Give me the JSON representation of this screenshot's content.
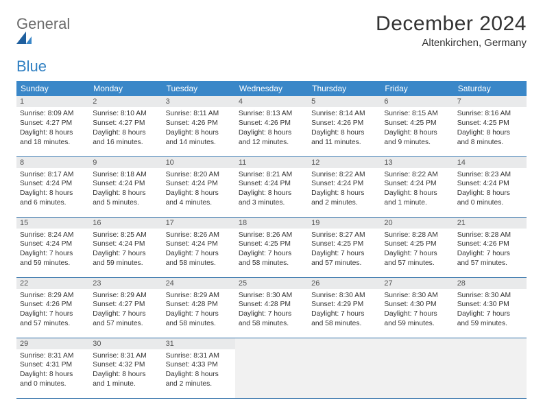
{
  "brand": {
    "general": "General",
    "blue": "Blue"
  },
  "title": "December 2024",
  "location": "Altenkirchen, Germany",
  "colors": {
    "header_bg": "#3a87c8",
    "header_text": "#ffffff",
    "daynum_bg": "#e9eaeb",
    "row_border": "#2f6fa8",
    "text": "#333333",
    "logo_general": "#6b6b6b",
    "logo_blue": "#2f7fc2"
  },
  "day_headers": [
    "Sunday",
    "Monday",
    "Tuesday",
    "Wednesday",
    "Thursday",
    "Friday",
    "Saturday"
  ],
  "weeks": [
    [
      {
        "n": "1",
        "sr": "Sunrise: 8:09 AM",
        "ss": "Sunset: 4:27 PM",
        "dl": "Daylight: 8 hours and 18 minutes."
      },
      {
        "n": "2",
        "sr": "Sunrise: 8:10 AM",
        "ss": "Sunset: 4:27 PM",
        "dl": "Daylight: 8 hours and 16 minutes."
      },
      {
        "n": "3",
        "sr": "Sunrise: 8:11 AM",
        "ss": "Sunset: 4:26 PM",
        "dl": "Daylight: 8 hours and 14 minutes."
      },
      {
        "n": "4",
        "sr": "Sunrise: 8:13 AM",
        "ss": "Sunset: 4:26 PM",
        "dl": "Daylight: 8 hours and 12 minutes."
      },
      {
        "n": "5",
        "sr": "Sunrise: 8:14 AM",
        "ss": "Sunset: 4:26 PM",
        "dl": "Daylight: 8 hours and 11 minutes."
      },
      {
        "n": "6",
        "sr": "Sunrise: 8:15 AM",
        "ss": "Sunset: 4:25 PM",
        "dl": "Daylight: 8 hours and 9 minutes."
      },
      {
        "n": "7",
        "sr": "Sunrise: 8:16 AM",
        "ss": "Sunset: 4:25 PM",
        "dl": "Daylight: 8 hours and 8 minutes."
      }
    ],
    [
      {
        "n": "8",
        "sr": "Sunrise: 8:17 AM",
        "ss": "Sunset: 4:24 PM",
        "dl": "Daylight: 8 hours and 6 minutes."
      },
      {
        "n": "9",
        "sr": "Sunrise: 8:18 AM",
        "ss": "Sunset: 4:24 PM",
        "dl": "Daylight: 8 hours and 5 minutes."
      },
      {
        "n": "10",
        "sr": "Sunrise: 8:20 AM",
        "ss": "Sunset: 4:24 PM",
        "dl": "Daylight: 8 hours and 4 minutes."
      },
      {
        "n": "11",
        "sr": "Sunrise: 8:21 AM",
        "ss": "Sunset: 4:24 PM",
        "dl": "Daylight: 8 hours and 3 minutes."
      },
      {
        "n": "12",
        "sr": "Sunrise: 8:22 AM",
        "ss": "Sunset: 4:24 PM",
        "dl": "Daylight: 8 hours and 2 minutes."
      },
      {
        "n": "13",
        "sr": "Sunrise: 8:22 AM",
        "ss": "Sunset: 4:24 PM",
        "dl": "Daylight: 8 hours and 1 minute."
      },
      {
        "n": "14",
        "sr": "Sunrise: 8:23 AM",
        "ss": "Sunset: 4:24 PM",
        "dl": "Daylight: 8 hours and 0 minutes."
      }
    ],
    [
      {
        "n": "15",
        "sr": "Sunrise: 8:24 AM",
        "ss": "Sunset: 4:24 PM",
        "dl": "Daylight: 7 hours and 59 minutes."
      },
      {
        "n": "16",
        "sr": "Sunrise: 8:25 AM",
        "ss": "Sunset: 4:24 PM",
        "dl": "Daylight: 7 hours and 59 minutes."
      },
      {
        "n": "17",
        "sr": "Sunrise: 8:26 AM",
        "ss": "Sunset: 4:24 PM",
        "dl": "Daylight: 7 hours and 58 minutes."
      },
      {
        "n": "18",
        "sr": "Sunrise: 8:26 AM",
        "ss": "Sunset: 4:25 PM",
        "dl": "Daylight: 7 hours and 58 minutes."
      },
      {
        "n": "19",
        "sr": "Sunrise: 8:27 AM",
        "ss": "Sunset: 4:25 PM",
        "dl": "Daylight: 7 hours and 57 minutes."
      },
      {
        "n": "20",
        "sr": "Sunrise: 8:28 AM",
        "ss": "Sunset: 4:25 PM",
        "dl": "Daylight: 7 hours and 57 minutes."
      },
      {
        "n": "21",
        "sr": "Sunrise: 8:28 AM",
        "ss": "Sunset: 4:26 PM",
        "dl": "Daylight: 7 hours and 57 minutes."
      }
    ],
    [
      {
        "n": "22",
        "sr": "Sunrise: 8:29 AM",
        "ss": "Sunset: 4:26 PM",
        "dl": "Daylight: 7 hours and 57 minutes."
      },
      {
        "n": "23",
        "sr": "Sunrise: 8:29 AM",
        "ss": "Sunset: 4:27 PM",
        "dl": "Daylight: 7 hours and 57 minutes."
      },
      {
        "n": "24",
        "sr": "Sunrise: 8:29 AM",
        "ss": "Sunset: 4:28 PM",
        "dl": "Daylight: 7 hours and 58 minutes."
      },
      {
        "n": "25",
        "sr": "Sunrise: 8:30 AM",
        "ss": "Sunset: 4:28 PM",
        "dl": "Daylight: 7 hours and 58 minutes."
      },
      {
        "n": "26",
        "sr": "Sunrise: 8:30 AM",
        "ss": "Sunset: 4:29 PM",
        "dl": "Daylight: 7 hours and 58 minutes."
      },
      {
        "n": "27",
        "sr": "Sunrise: 8:30 AM",
        "ss": "Sunset: 4:30 PM",
        "dl": "Daylight: 7 hours and 59 minutes."
      },
      {
        "n": "28",
        "sr": "Sunrise: 8:30 AM",
        "ss": "Sunset: 4:30 PM",
        "dl": "Daylight: 7 hours and 59 minutes."
      }
    ],
    [
      {
        "n": "29",
        "sr": "Sunrise: 8:31 AM",
        "ss": "Sunset: 4:31 PM",
        "dl": "Daylight: 8 hours and 0 minutes."
      },
      {
        "n": "30",
        "sr": "Sunrise: 8:31 AM",
        "ss": "Sunset: 4:32 PM",
        "dl": "Daylight: 8 hours and 1 minute."
      },
      {
        "n": "31",
        "sr": "Sunrise: 8:31 AM",
        "ss": "Sunset: 4:33 PM",
        "dl": "Daylight: 8 hours and 2 minutes."
      },
      null,
      null,
      null,
      null
    ]
  ]
}
